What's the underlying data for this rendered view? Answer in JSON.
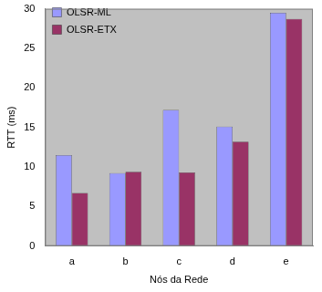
{
  "chart_data": {
    "type": "bar",
    "x_label": "Nós da Rede",
    "y_label": "RTT (ms)",
    "categories": [
      "a",
      "b",
      "c",
      "d",
      "e"
    ],
    "series": [
      {
        "name": "OLSR-ML",
        "color": "#9999ff",
        "values": [
          11.5,
          9.2,
          17.2,
          15.1,
          29.5
        ]
      },
      {
        "name": "OLSR-ETX",
        "color": "#993366",
        "values": [
          6.7,
          9.4,
          9.3,
          13.2,
          28.7
        ]
      }
    ],
    "ylim": [
      0,
      30
    ],
    "yticks": [
      0,
      5,
      10,
      15,
      20,
      25,
      30
    ],
    "grid": false,
    "legend": "upper left"
  }
}
